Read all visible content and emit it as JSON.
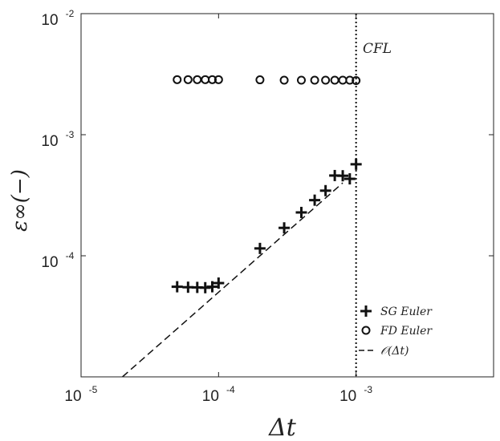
{
  "chart_data": {
    "type": "scatter",
    "xscale": "log",
    "yscale": "log",
    "xlim": [
      1e-05,
      0.01
    ],
    "ylim": [
      1e-05,
      0.01
    ],
    "xticks": [
      {
        "value": 1e-05,
        "base": "10",
        "exp": "-5"
      },
      {
        "value": 0.0001,
        "base": "10",
        "exp": "-4"
      },
      {
        "value": 0.001,
        "base": "10",
        "exp": "-3"
      }
    ],
    "yticks": [
      {
        "value": 0.0001,
        "base": "10",
        "exp": "-4"
      },
      {
        "value": 0.001,
        "base": "10",
        "exp": "-3"
      },
      {
        "value": 0.01,
        "base": "10",
        "exp": "-2"
      }
    ],
    "xlabel": "Δt",
    "ylabel": "ε∞(−)",
    "grid": false,
    "legend_position": "bottom-right",
    "series": [
      {
        "name": "SG Euler",
        "marker": "plus",
        "x": [
          5e-05,
          6e-05,
          7e-05,
          8e-05,
          9e-05,
          0.0001,
          0.0002,
          0.0003,
          0.0004,
          0.0005,
          0.0006,
          0.0007,
          0.0008,
          0.0009,
          0.001
        ],
        "y": [
          5.55e-05,
          5.5e-05,
          5.48e-05,
          5.45e-05,
          5.55e-05,
          5.95e-05,
          0.000115,
          0.00017,
          0.000228,
          0.000288,
          0.000345,
          0.00046,
          0.000458,
          0.000432,
          0.00057
        ]
      },
      {
        "name": "FD Euler",
        "marker": "circle",
        "x": [
          5e-05,
          6e-05,
          7e-05,
          8e-05,
          9e-05,
          0.0001,
          0.0002,
          0.0003,
          0.0004,
          0.0005,
          0.0006,
          0.0007,
          0.0008,
          0.0009,
          0.001
        ],
        "y": [
          0.00285,
          0.00285,
          0.00285,
          0.00285,
          0.00285,
          0.00285,
          0.00284,
          0.00282,
          0.00282,
          0.00282,
          0.00282,
          0.00282,
          0.00282,
          0.00282,
          0.0028
        ]
      },
      {
        "name": "𝒪(Δt)",
        "line": "dashed",
        "x": [
          2e-05,
          0.0008
        ],
        "y": [
          1e-05,
          0.0004
        ]
      }
    ],
    "vline": {
      "x": 0.001,
      "style": "dotted",
      "label": "CFL"
    }
  }
}
